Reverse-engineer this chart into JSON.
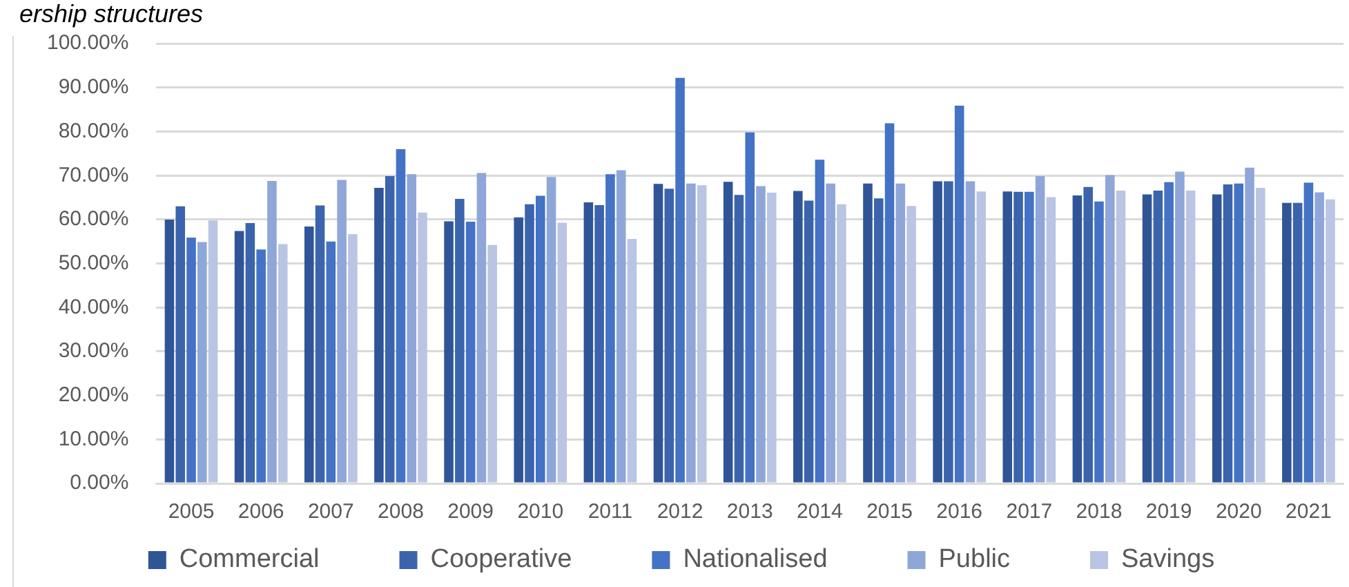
{
  "chart_data": {
    "type": "bar",
    "title": "ership structures",
    "categories": [
      "2005",
      "2006",
      "2007",
      "2008",
      "2009",
      "2010",
      "2011",
      "2012",
      "2013",
      "2014",
      "2015",
      "2016",
      "2017",
      "2018",
      "2019",
      "2020",
      "2021"
    ],
    "series": [
      {
        "name": "Commercial",
        "color": "#2f5597",
        "values": [
          60.0,
          57.4,
          58.4,
          67.2,
          59.6,
          60.5,
          63.9,
          68.1,
          68.6,
          66.5,
          68.2,
          68.7,
          66.4,
          65.5,
          65.7,
          65.7,
          63.8
        ]
      },
      {
        "name": "Cooperative",
        "color": "#3b64ad",
        "values": [
          63.0,
          59.2,
          63.2,
          69.9,
          64.7,
          63.5,
          63.3,
          67.0,
          65.6,
          64.3,
          64.8,
          68.7,
          66.3,
          67.4,
          66.6,
          68.0,
          63.8
        ]
      },
      {
        "name": "Nationalised",
        "color": "#4472c4",
        "values": [
          55.9,
          53.2,
          55.0,
          76.0,
          59.5,
          65.4,
          70.3,
          92.2,
          79.8,
          73.6,
          81.9,
          85.9,
          66.3,
          64.1,
          68.5,
          68.2,
          68.4
        ]
      },
      {
        "name": "Public",
        "color": "#8fa6d8",
        "values": [
          54.9,
          68.8,
          69.0,
          70.3,
          70.6,
          69.7,
          71.2,
          68.2,
          67.6,
          68.2,
          68.2,
          68.7,
          69.9,
          70.1,
          70.9,
          71.8,
          66.2
        ]
      },
      {
        "name": "Savings",
        "color": "#bac5e3",
        "values": [
          59.8,
          54.4,
          56.7,
          61.6,
          54.2,
          59.3,
          55.6,
          67.8,
          66.1,
          63.5,
          63.1,
          66.4,
          65.1,
          66.6,
          66.6,
          67.2,
          64.6
        ]
      }
    ],
    "ylim": [
      0,
      100
    ],
    "yticks": [
      {
        "value": 0,
        "label": "0.00%"
      },
      {
        "value": 10,
        "label": "10.00%"
      },
      {
        "value": 20,
        "label": "20.00%"
      },
      {
        "value": 30,
        "label": "30.00%"
      },
      {
        "value": 40,
        "label": "40.00%"
      },
      {
        "value": 50,
        "label": "50.00%"
      },
      {
        "value": 60,
        "label": "60.00%"
      },
      {
        "value": 70,
        "label": "70.00%"
      },
      {
        "value": 80,
        "label": "80.00%"
      },
      {
        "value": 90,
        "label": "90.00%"
      },
      {
        "value": 100,
        "label": "100.00%"
      }
    ],
    "grid": "y",
    "legend": "bottom"
  }
}
